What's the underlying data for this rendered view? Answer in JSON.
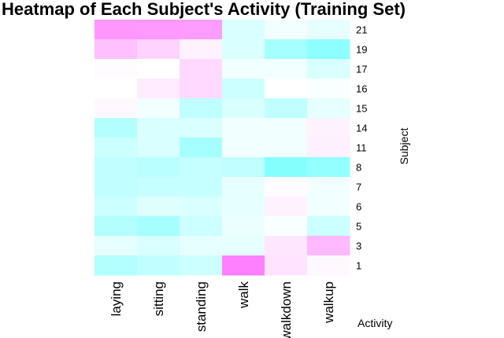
{
  "chart_data": {
    "type": "heatmap",
    "title": "Heatmap of Each Subject's Activity (Training Set)",
    "xlabel": "Activity",
    "ylabel": "Subject",
    "columns": [
      "laying",
      "sitting",
      "standing",
      "walk",
      "walkdown",
      "walkup"
    ],
    "rows": [
      "21",
      "19",
      "17",
      "16",
      "15",
      "14",
      "11",
      "8",
      "7",
      "6",
      "5",
      "3",
      "1"
    ],
    "colors": {
      "low": "#80ffff",
      "mid": "#ffffff",
      "high": "#ff80ff"
    },
    "values": [
      [
        0.82,
        0.8,
        0.78,
        -0.3,
        -0.1,
        -0.2
      ],
      [
        0.5,
        0.35,
        0.1,
        -0.3,
        -0.7,
        -0.9
      ],
      [
        0.02,
        0.0,
        0.3,
        -0.1,
        -0.1,
        -0.3
      ],
      [
        0.0,
        0.15,
        0.3,
        -0.4,
        0.0,
        -0.05
      ],
      [
        0.05,
        -0.1,
        -0.5,
        -0.3,
        -0.5,
        -0.2
      ],
      [
        -0.6,
        -0.3,
        -0.3,
        -0.1,
        -0.1,
        0.1
      ],
      [
        -0.4,
        -0.3,
        -0.7,
        -0.1,
        -0.1,
        0.12
      ],
      [
        -0.5,
        -0.55,
        -0.45,
        -0.5,
        -0.95,
        -0.85
      ],
      [
        -0.5,
        -0.45,
        -0.45,
        -0.2,
        0.02,
        -0.1
      ],
      [
        -0.4,
        -0.25,
        -0.3,
        -0.2,
        0.1,
        -0.1
      ],
      [
        -0.6,
        -0.7,
        -0.4,
        -0.15,
        -0.05,
        -0.4
      ],
      [
        -0.2,
        -0.3,
        -0.2,
        -0.2,
        0.2,
        0.55
      ],
      [
        -0.6,
        -0.5,
        -0.4,
        1.0,
        0.22,
        0.05
      ]
    ]
  }
}
